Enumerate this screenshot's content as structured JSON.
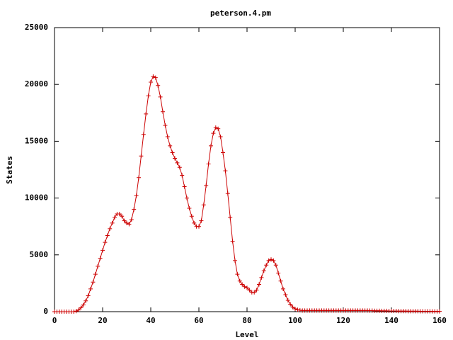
{
  "chart_data": {
    "type": "line",
    "title": "peterson.4.pm",
    "x_label": "Level",
    "y_label": "States",
    "x": [
      0,
      1,
      2,
      3,
      4,
      5,
      6,
      7,
      8,
      9,
      10,
      11,
      12,
      13,
      14,
      15,
      16,
      17,
      18,
      19,
      20,
      21,
      22,
      23,
      24,
      25,
      26,
      27,
      28,
      29,
      30,
      31,
      32,
      33,
      34,
      35,
      36,
      37,
      38,
      39,
      40,
      41,
      42,
      43,
      44,
      45,
      46,
      47,
      48,
      49,
      50,
      51,
      52,
      53,
      54,
      55,
      56,
      57,
      58,
      59,
      60,
      61,
      62,
      63,
      64,
      65,
      66,
      67,
      68,
      69,
      70,
      71,
      72,
      73,
      74,
      75,
      76,
      77,
      78,
      79,
      80,
      81,
      82,
      83,
      84,
      85,
      86,
      87,
      88,
      89,
      90,
      91,
      92,
      93,
      94,
      95,
      96,
      97,
      98,
      99,
      100,
      101,
      102,
      103,
      104,
      105,
      106,
      107,
      108,
      109,
      110,
      111,
      112,
      113,
      114,
      115,
      116,
      117,
      118,
      119,
      120,
      121,
      122,
      123,
      124,
      125,
      126,
      127,
      128,
      129,
      130,
      131,
      132,
      133,
      134,
      135,
      136,
      137,
      138,
      139,
      140,
      141,
      142,
      143,
      144,
      145,
      146,
      147,
      148,
      149,
      150,
      151,
      152,
      153,
      154,
      155,
      156,
      157,
      158,
      159,
      160
    ],
    "series": [
      {
        "color": "#cc0000",
        "values": [
          0,
          0,
          0,
          0,
          0,
          0,
          0,
          0,
          0,
          50,
          150,
          350,
          600,
          950,
          1400,
          2000,
          2600,
          3300,
          4000,
          4700,
          5400,
          6100,
          6700,
          7300,
          7800,
          8300,
          8600,
          8600,
          8400,
          8000,
          7800,
          7700,
          8100,
          9000,
          10200,
          11800,
          13700,
          15600,
          17400,
          19000,
          20200,
          20700,
          20600,
          19900,
          18900,
          17600,
          16400,
          15400,
          14600,
          14000,
          13500,
          13100,
          12700,
          12000,
          11000,
          10000,
          9100,
          8400,
          7800,
          7500,
          7500,
          8000,
          9400,
          11100,
          13000,
          14600,
          15700,
          16200,
          16100,
          15400,
          14000,
          12400,
          10400,
          8300,
          6200,
          4500,
          3300,
          2700,
          2400,
          2200,
          2100,
          1900,
          1700,
          1700,
          1900,
          2400,
          3000,
          3600,
          4100,
          4500,
          4600,
          4500,
          4100,
          3400,
          2700,
          2000,
          1500,
          1000,
          650,
          400,
          250,
          170,
          130,
          100,
          100,
          100,
          100,
          100,
          100,
          100,
          100,
          100,
          100,
          100,
          100,
          100,
          100,
          100,
          100,
          100,
          100,
          100,
          100,
          100,
          100,
          100,
          100,
          100,
          100,
          100,
          100,
          90,
          90,
          80,
          80,
          80,
          70,
          70,
          70,
          60,
          60,
          60,
          60,
          50,
          50,
          50,
          50,
          40,
          40,
          40,
          40,
          40,
          30,
          30,
          30,
          30,
          30,
          20,
          20,
          20,
          20
        ]
      }
    ],
    "xlim": [
      0,
      160
    ],
    "xticks": [
      0,
      20,
      40,
      60,
      80,
      100,
      120,
      140,
      160
    ],
    "ylim": [
      0,
      25000
    ],
    "yticks": [
      0,
      5000,
      10000,
      15000,
      20000,
      25000
    ]
  }
}
